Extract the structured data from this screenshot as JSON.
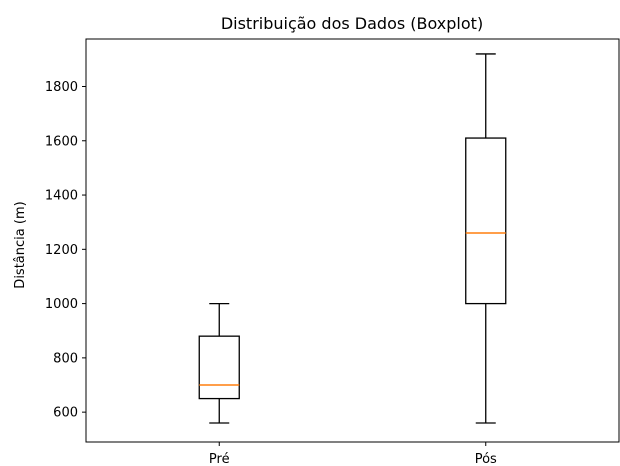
{
  "chart_data": {
    "type": "boxplot",
    "title": "Distribuição dos Dados (Boxplot)",
    "xlabel": "",
    "ylabel": "Distância (m)",
    "ylim": [
      490,
      1975
    ],
    "yticks": [
      600,
      800,
      1000,
      1200,
      1400,
      1600,
      1800
    ],
    "ytick_labels": [
      "600",
      "800",
      "1000",
      "1200",
      "1400",
      "1600",
      "1800"
    ],
    "categories": [
      "Pré",
      "Pós"
    ],
    "boxes": [
      {
        "category": "Pré",
        "whisker_low": 560,
        "q1": 650,
        "median": 700,
        "q3": 880,
        "whisker_high": 1000
      },
      {
        "category": "Pós",
        "whisker_low": 560,
        "q1": 1000,
        "median": 1260,
        "q3": 1610,
        "whisker_high": 1920
      }
    ],
    "grid": false,
    "legend": "none",
    "colors": {
      "box": "#000000",
      "median": "#ff7f0e",
      "background": "#ffffff"
    }
  }
}
